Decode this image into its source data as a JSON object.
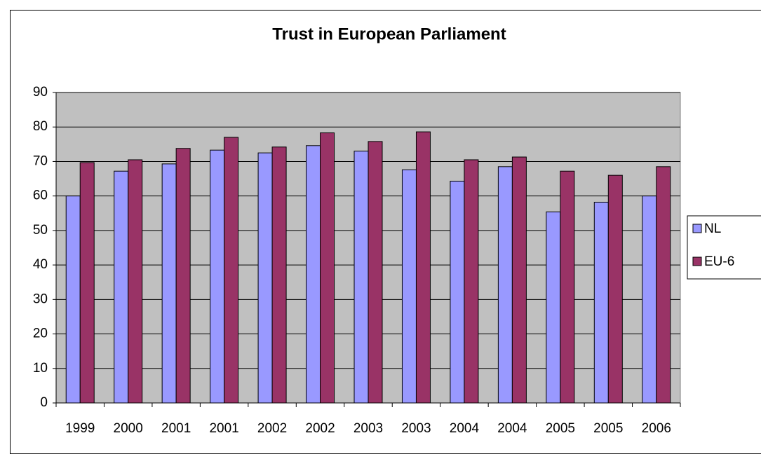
{
  "chart_data": {
    "type": "bar",
    "title": "Trust in European Parliament",
    "categories": [
      "1999",
      "2000",
      "2001",
      "2001",
      "2002",
      "2002",
      "2003",
      "2003",
      "2004",
      "2004",
      "2005",
      "2005",
      "2006"
    ],
    "series": [
      {
        "name": "NL",
        "color": "#9999ff",
        "values": [
          60,
          67.2,
          69.3,
          73.3,
          72.5,
          74.6,
          73,
          67.6,
          64.3,
          68.5,
          55.4,
          58.2,
          60
        ]
      },
      {
        "name": "EU-6",
        "color": "#993366",
        "values": [
          69.7,
          70.5,
          73.8,
          77,
          74.2,
          78.3,
          75.8,
          78.6,
          70.5,
          71.3,
          67.2,
          66,
          68.5
        ]
      }
    ],
    "ylim": [
      0,
      90
    ],
    "yticks": [
      0,
      10,
      20,
      30,
      40,
      50,
      60,
      70,
      80,
      90
    ],
    "grid": true,
    "legend": "right"
  }
}
